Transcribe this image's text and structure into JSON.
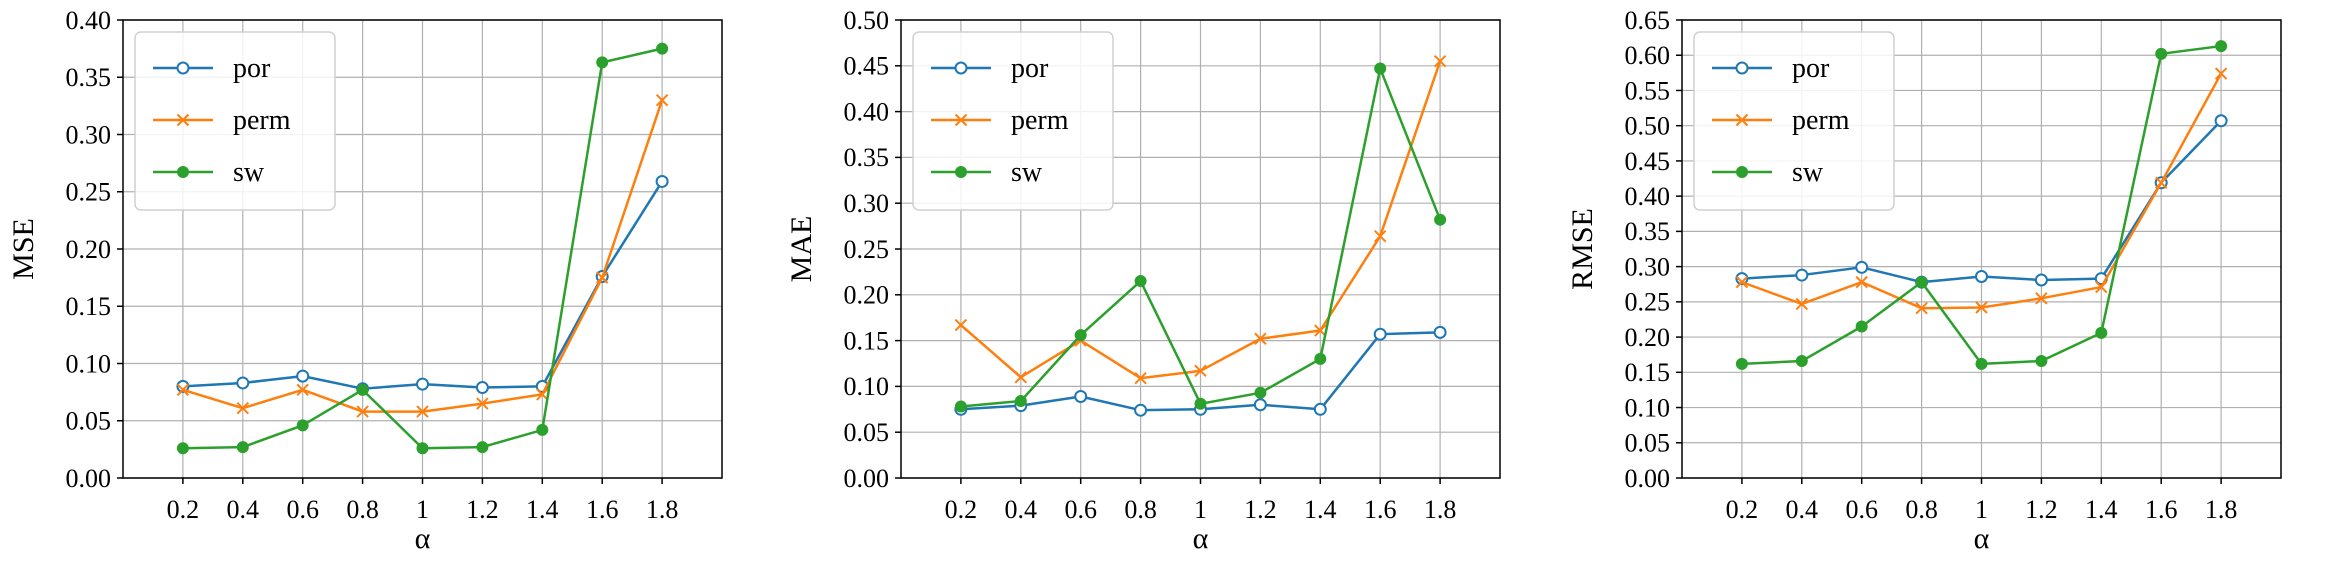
{
  "chart_data": [
    {
      "type": "line",
      "ylabel": "MSE",
      "xlabel": "α",
      "categories": [
        "0.2",
        "0.4",
        "0.6",
        "0.8",
        "1",
        "1.2",
        "1.4",
        "1.6",
        "1.8"
      ],
      "ylim": [
        0.0,
        0.4
      ],
      "yticks": [
        "0.00",
        "0.05",
        "0.10",
        "0.15",
        "0.20",
        "0.25",
        "0.30",
        "0.35",
        "0.40"
      ],
      "grid": true,
      "legend_position": "top-left",
      "series": [
        {
          "name": "por",
          "color": "#1f77b4",
          "marker": "open-circle",
          "values": [
            0.08,
            0.083,
            0.089,
            0.078,
            0.082,
            0.079,
            0.08,
            0.176,
            0.259
          ]
        },
        {
          "name": "perm",
          "color": "#ff7f0e",
          "marker": "x",
          "values": [
            0.077,
            0.061,
            0.077,
            0.058,
            0.058,
            0.065,
            0.073,
            0.175,
            0.33
          ]
        },
        {
          "name": "sw",
          "color": "#2ca02c",
          "marker": "filled-circle",
          "values": [
            0.026,
            0.027,
            0.046,
            0.077,
            0.026,
            0.027,
            0.042,
            0.363,
            0.375
          ]
        }
      ]
    },
    {
      "type": "line",
      "ylabel": "MAE",
      "xlabel": "α",
      "categories": [
        "0.2",
        "0.4",
        "0.6",
        "0.8",
        "1",
        "1.2",
        "1.4",
        "1.6",
        "1.8"
      ],
      "ylim": [
        0.0,
        0.5
      ],
      "yticks": [
        "0.00",
        "0.05",
        "0.10",
        "0.15",
        "0.20",
        "0.25",
        "0.30",
        "0.35",
        "0.40",
        "0.45",
        "0.50"
      ],
      "grid": true,
      "legend_position": "top-left",
      "series": [
        {
          "name": "por",
          "color": "#1f77b4",
          "marker": "open-circle",
          "values": [
            0.075,
            0.079,
            0.089,
            0.074,
            0.075,
            0.08,
            0.075,
            0.157,
            0.159
          ]
        },
        {
          "name": "perm",
          "color": "#ff7f0e",
          "marker": "x",
          "values": [
            0.167,
            0.11,
            0.15,
            0.109,
            0.117,
            0.152,
            0.161,
            0.264,
            0.455
          ]
        },
        {
          "name": "sw",
          "color": "#2ca02c",
          "marker": "filled-circle",
          "values": [
            0.078,
            0.084,
            0.156,
            0.215,
            0.081,
            0.093,
            0.13,
            0.447,
            0.282
          ]
        }
      ]
    },
    {
      "type": "line",
      "ylabel": "RMSE",
      "xlabel": "α",
      "categories": [
        "0.2",
        "0.4",
        "0.6",
        "0.8",
        "1",
        "1.2",
        "1.4",
        "1.6",
        "1.8"
      ],
      "ylim": [
        0.0,
        0.65
      ],
      "yticks": [
        "0.00",
        "0.05",
        "0.10",
        "0.15",
        "0.20",
        "0.25",
        "0.30",
        "0.35",
        "0.40",
        "0.45",
        "0.50",
        "0.55",
        "0.60",
        "0.65"
      ],
      "grid": true,
      "legend_position": "top-left",
      "series": [
        {
          "name": "por",
          "color": "#1f77b4",
          "marker": "open-circle",
          "values": [
            0.283,
            0.288,
            0.299,
            0.278,
            0.286,
            0.281,
            0.283,
            0.419,
            0.507
          ]
        },
        {
          "name": "perm",
          "color": "#ff7f0e",
          "marker": "x",
          "values": [
            0.278,
            0.247,
            0.278,
            0.241,
            0.242,
            0.255,
            0.271,
            0.419,
            0.574
          ]
        },
        {
          "name": "sw",
          "color": "#2ca02c",
          "marker": "filled-circle",
          "values": [
            0.162,
            0.166,
            0.215,
            0.278,
            0.162,
            0.166,
            0.206,
            0.602,
            0.613
          ]
        }
      ]
    }
  ]
}
